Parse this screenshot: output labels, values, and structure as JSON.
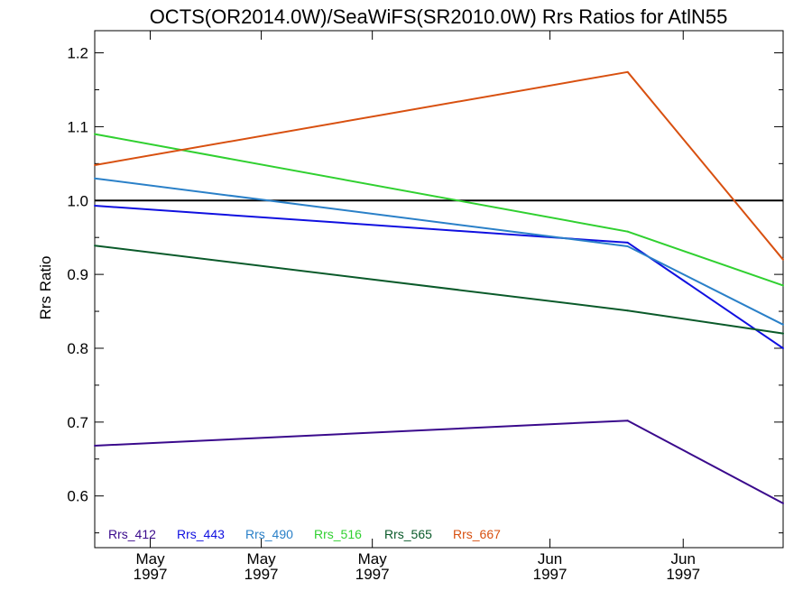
{
  "chart_data": {
    "type": "line",
    "title": "OCTS(OR2014.0W)/SeaWiFS(SR2010.0W)  Rrs Ratios for AtlN55",
    "ylabel": "Rrs Ratio",
    "xlabel": "",
    "ylim": [
      0.53,
      1.23
    ],
    "y_ticks": [
      0.6,
      0.7,
      0.8,
      0.9,
      1.0,
      1.1,
      1.2
    ],
    "y_tick_labels": [
      "0.6",
      "0.7",
      "0.8",
      "0.9",
      "1.0",
      "1.1",
      "1.2"
    ],
    "xlim": [
      "1997-04-26",
      "1997-06-27"
    ],
    "x_ticks": [
      "1997-05-01",
      "1997-05-11",
      "1997-05-21",
      "1997-06-06",
      "1997-06-18"
    ],
    "x_tick_labels": [
      {
        "month": "May",
        "year": "1997"
      },
      {
        "month": "May",
        "year": "1997"
      },
      {
        "month": "May",
        "year": "1997"
      },
      {
        "month": "Jun",
        "year": "1997"
      },
      {
        "month": "Jun",
        "year": "1997"
      }
    ],
    "x": [
      "1997-04-26",
      "1997-06-13",
      "1997-06-27"
    ],
    "reference_line": {
      "y": 1.0,
      "color": "#000000"
    },
    "legend_position": "bottom-left",
    "grid": false,
    "series": [
      {
        "name": "Rrs_412",
        "color": "#3a0a8c",
        "values": [
          0.668,
          0.702,
          0.59
        ]
      },
      {
        "name": "Rrs_443",
        "color": "#1010e0",
        "values": [
          0.993,
          0.943,
          0.8
        ]
      },
      {
        "name": "Rrs_490",
        "color": "#2a80c8",
        "values": [
          1.03,
          0.938,
          0.832
        ]
      },
      {
        "name": "Rrs_516",
        "color": "#30d030",
        "values": [
          1.09,
          0.958,
          0.885
        ]
      },
      {
        "name": "Rrs_565",
        "color": "#0a5a2a",
        "values": [
          0.939,
          0.851,
          0.82
        ]
      },
      {
        "name": "Rrs_667",
        "color": "#d85010",
        "values": [
          1.048,
          1.174,
          0.92
        ]
      }
    ]
  }
}
